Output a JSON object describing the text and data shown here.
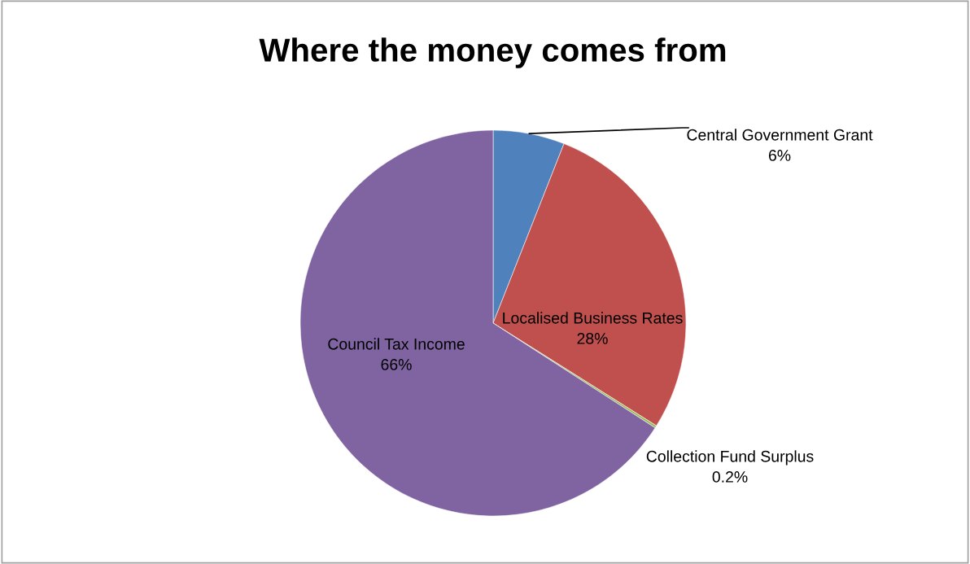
{
  "chart_data": {
    "type": "pie",
    "title": "Where the money comes from",
    "categories": [
      "Central Government Grant",
      "Localised Business Rates",
      "Collection Fund Surplus",
      "Council Tax Income"
    ],
    "values": [
      6,
      28,
      0.2,
      66
    ],
    "value_labels": [
      "6%",
      "28%",
      "0.2%",
      "66%"
    ],
    "colors": [
      "#4f81bd",
      "#c0504d",
      "#9bbb59",
      "#8064a2"
    ],
    "legend": false
  }
}
